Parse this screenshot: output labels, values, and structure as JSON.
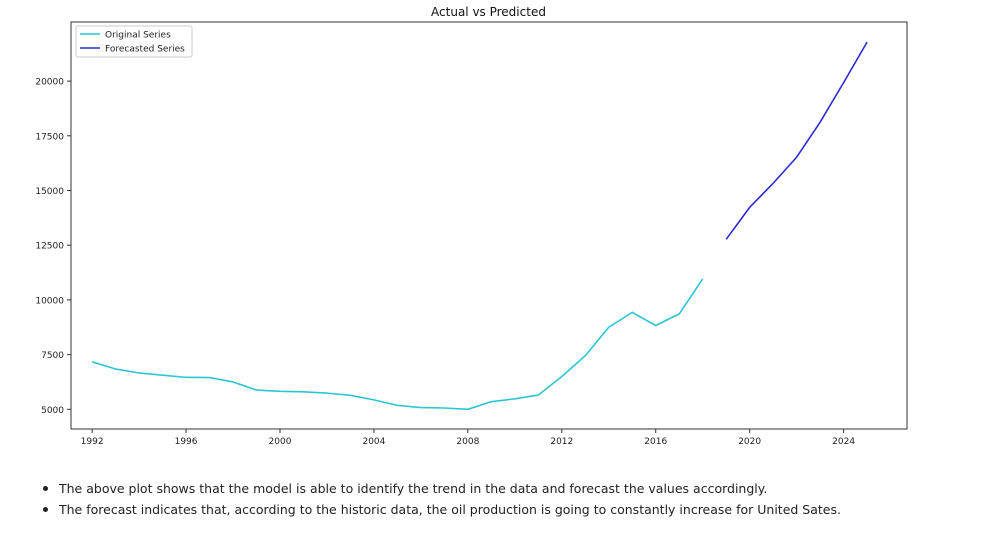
{
  "chart_data": {
    "type": "line",
    "title": "Actual vs Predicted",
    "xlabel": "",
    "ylabel": "",
    "xlim": [
      1991.1,
      2026.7
    ],
    "ylim": [
      4100,
      22700
    ],
    "xticks": [
      1992,
      1996,
      2000,
      2004,
      2008,
      2012,
      2016,
      2020,
      2024
    ],
    "yticks": [
      5000,
      7500,
      10000,
      12500,
      15000,
      17500,
      20000
    ],
    "grid": false,
    "legend_position": "top-left",
    "series": [
      {
        "name": "Original Series",
        "color": "#2cc6d2",
        "x": [
          1992,
          1993,
          1994,
          1995,
          1996,
          1997,
          1998,
          1999,
          2000,
          2001,
          2002,
          2003,
          2004,
          2005,
          2006,
          2007,
          2008,
          2009,
          2010,
          2011,
          2012,
          2013,
          2014,
          2015,
          2016,
          2017,
          2018
        ],
        "y": [
          7170,
          6840,
          6660,
          6560,
          6460,
          6450,
          6250,
          5880,
          5820,
          5800,
          5740,
          5640,
          5430,
          5180,
          5080,
          5060,
          5000,
          5350,
          5480,
          5650,
          6500,
          7450,
          8750,
          9430,
          8830,
          9360,
          10960
        ]
      },
      {
        "name": "Forecasted Series",
        "color": "#2b2bd6",
        "x": [
          2019,
          2020,
          2021,
          2022,
          2023,
          2024,
          2025
        ],
        "y": [
          12770,
          14230,
          15330,
          16520,
          18120,
          19930,
          21780
        ]
      }
    ]
  },
  "notes": [
    "The above plot shows that the model is able to identify the trend in the data and forecast the values accordingly.",
    "The forecast indicates that, according to the historic data, the oil production is going to constantly increase for United Sates."
  ]
}
